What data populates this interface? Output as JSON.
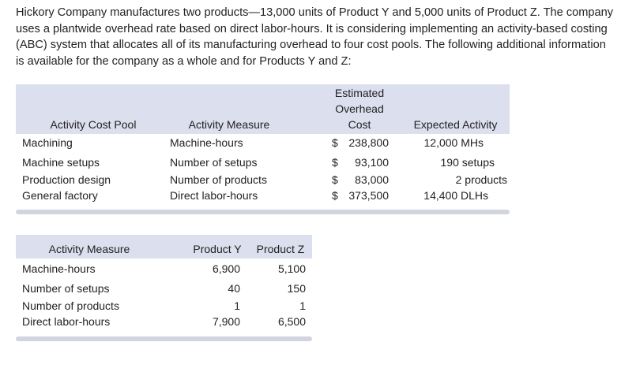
{
  "intro": "Hickory Company manufactures two products—13,000 units of Product Y and 5,000 units of Product Z. The company uses a plantwide overhead rate based on direct labor-hours. It is considering implementing an activity-based costing (ABC) system that allocates all of its manufacturing overhead to four cost pools. The following additional information is available for the company as a whole and for Products Y and Z:",
  "table1": {
    "headers": {
      "pool": "Activity Cost Pool",
      "measure": "Activity Measure",
      "cost_line1": "Estimated",
      "cost_line2": "Overhead",
      "cost_line3": "Cost",
      "activity": "Expected Activity"
    },
    "rows": [
      {
        "pool": "Machining",
        "measure": "Machine-hours",
        "dollar": "$",
        "cost": "238,800",
        "activity": "12,000 MHs"
      },
      {
        "pool": "Machine setups",
        "measure": "Number of setups",
        "dollar": "$",
        "cost": "93,100",
        "activity": "190 setups"
      },
      {
        "pool": "Production design",
        "measure": "Number of products",
        "dollar": "$",
        "cost": "83,000",
        "activity": "2 products"
      },
      {
        "pool": "General factory",
        "measure": "Direct labor-hours",
        "dollar": "$",
        "cost": "373,500",
        "activity": "14,400 DLHs"
      }
    ]
  },
  "table2": {
    "headers": {
      "measure": "Activity Measure",
      "y": "Product Y",
      "z": "Product Z"
    },
    "rows": [
      {
        "measure": "Machine-hours",
        "y": "6,900",
        "z": "5,100"
      },
      {
        "measure": "Number of setups",
        "y": "40",
        "z": "150"
      },
      {
        "measure": "Number of products",
        "y": "1",
        "z": "1"
      },
      {
        "measure": "Direct labor-hours",
        "y": "7,900",
        "z": "6,500"
      }
    ]
  }
}
